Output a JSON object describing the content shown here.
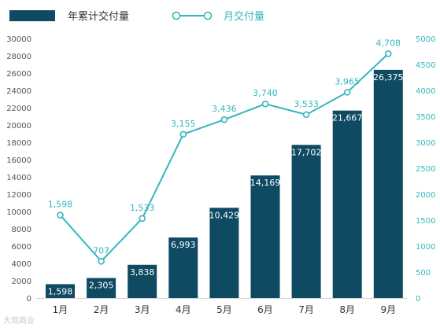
{
  "chart_data": {
    "type": "bar+line",
    "categories": [
      "1月",
      "2月",
      "3月",
      "4月",
      "5月",
      "6月",
      "7月",
      "8月",
      "9月"
    ],
    "series": [
      {
        "name": "年累计交付量",
        "type": "bar",
        "axis": "left",
        "values": [
          1598,
          2305,
          3838,
          6993,
          10429,
          14169,
          17702,
          21667,
          26375
        ],
        "labels": [
          "1,598",
          "2,305",
          "3,838",
          "6,993",
          "10,429",
          "14,169",
          "17,702",
          "21,667",
          "26,375"
        ]
      },
      {
        "name": "月交付量",
        "type": "line",
        "axis": "right",
        "values": [
          1598,
          707,
          1533,
          3155,
          3436,
          3740,
          3533,
          3965,
          4708
        ],
        "labels": [
          "1,598",
          "707",
          "1,533",
          "3,155",
          "3,436",
          "3,740",
          "3,533",
          "3,965",
          "4,708"
        ]
      }
    ],
    "y_left": {
      "ylim": [
        0,
        30000
      ],
      "ticks": [
        "0",
        "2000",
        "4000",
        "6000",
        "8000",
        "10000",
        "12000",
        "14000",
        "16000",
        "18000",
        "20000",
        "22000",
        "24000",
        "26000",
        "28000",
        "30000"
      ]
    },
    "y_right": {
      "ylim": [
        0,
        5000
      ],
      "ticks": [
        "0",
        "500",
        "1000",
        "1500",
        "2000",
        "2500",
        "3000",
        "3500",
        "4000",
        "4500",
        "5000"
      ]
    },
    "legend_position": "top-left",
    "grid": false,
    "colors": {
      "bar": "#0e4a62",
      "line": "#35b7bd",
      "bar_label": "#ffffff",
      "line_label": "#35b7bd",
      "tick": "#555555",
      "right_tick": "#35b7bd"
    }
  },
  "watermark": "大观商业"
}
